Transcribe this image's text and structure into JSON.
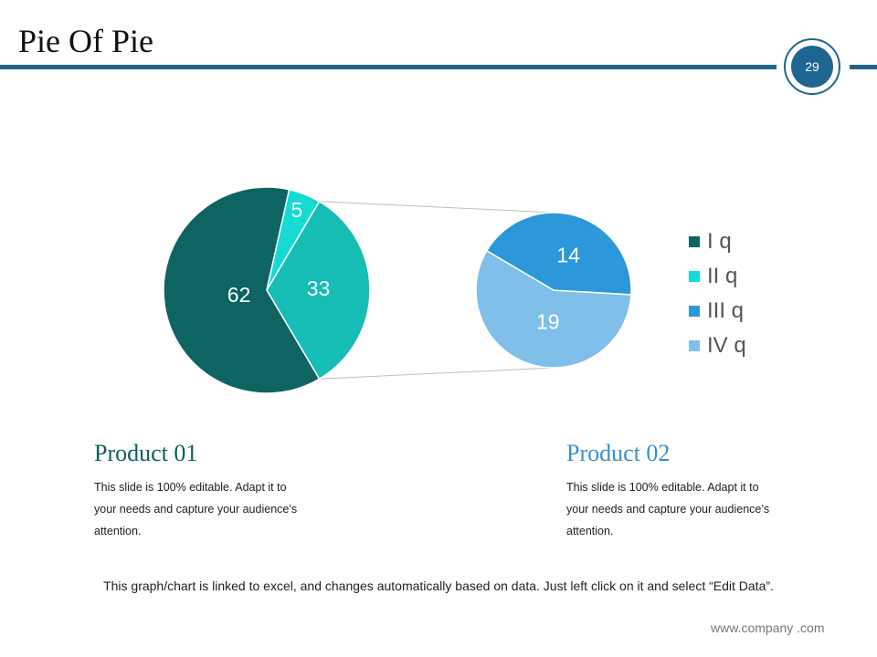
{
  "slide": {
    "title": "Pie Of Pie",
    "page_number": "29",
    "footnote": "This graph/chart is linked to excel, and changes automatically based on data. Just left click on it and select “Edit Data”.",
    "website": "www.company .com"
  },
  "colors": {
    "accent": "#1f6591",
    "product1_heading": "#0d5f5b",
    "product2_heading": "#3b91c9"
  },
  "products": [
    {
      "heading": "Product 01",
      "body_lines": [
        "This slide is 100% editable. Adapt it to",
        "your needs and capture your audience’s",
        "attention."
      ]
    },
    {
      "heading": "Product 02",
      "body_lines": [
        "This slide is 100% editable. Adapt it to",
        "your needs and capture your audience’s",
        "attention."
      ]
    }
  ],
  "chart_data": {
    "type": "pie",
    "subtype": "pie-of-pie",
    "legend_position": "right",
    "slices": [
      {
        "name": "I q",
        "value": 62,
        "color": "#0d6460",
        "pie": "primary"
      },
      {
        "name": "II q",
        "value": 5,
        "color": "#14dcd3",
        "pie": "primary"
      },
      {
        "name": "III q",
        "value": 14,
        "color": "#2c97d9",
        "pie": "secondary"
      },
      {
        "name": "IV q",
        "value": 19,
        "color": "#7fbfe9",
        "pie": "secondary"
      }
    ],
    "combined_slice": {
      "value": 33,
      "color": "#16bdb4"
    },
    "legend": [
      {
        "label": "I q",
        "color": "#0d6460"
      },
      {
        "label": "II q",
        "color": "#14dcd3"
      },
      {
        "label": "III q",
        "color": "#2c97d9"
      },
      {
        "label": "IV q",
        "color": "#7fbfe9"
      }
    ]
  }
}
